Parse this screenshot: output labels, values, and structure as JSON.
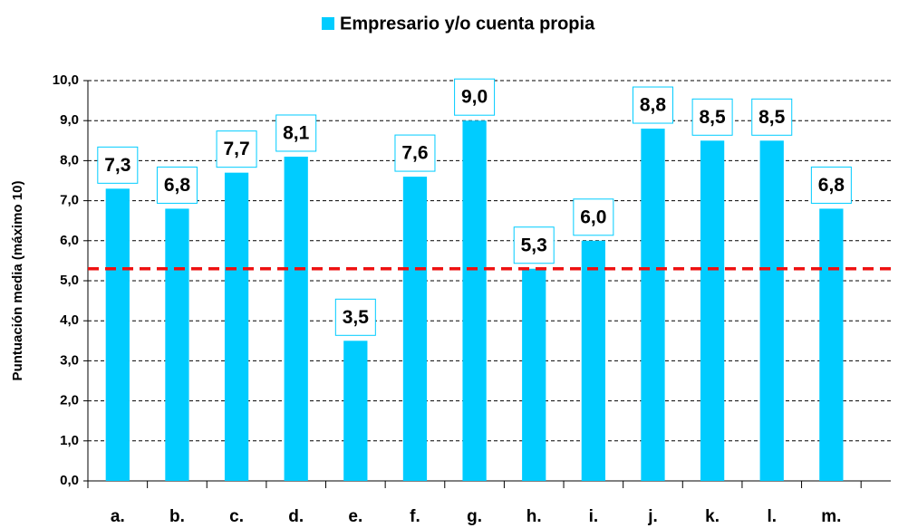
{
  "chart_data": {
    "type": "bar",
    "legend": "Empresario y/o cuenta propia",
    "y_label": "Puntuación media (máximo 10)",
    "categories": [
      "a.",
      "b.",
      "c.",
      "d.",
      "e.",
      "f.",
      "g.",
      "h.",
      "i.",
      "j.",
      "k.",
      "l.",
      "m."
    ],
    "values": [
      7.3,
      6.8,
      7.7,
      8.1,
      3.5,
      7.6,
      9.0,
      5.3,
      6.0,
      8.8,
      8.5,
      8.5,
      6.8
    ],
    "value_labels": [
      "7,3",
      "6,8",
      "7,7",
      "8,1",
      "3,5",
      "7,6",
      "9,0",
      "5,3",
      "6,0",
      "8,8",
      "8,5",
      "8,5",
      "6,8"
    ],
    "color": "#00ccff",
    "reference_line": {
      "value": 5.3,
      "color": "#ee1111"
    },
    "ylim": [
      0,
      10
    ],
    "yticks": [
      {
        "value": 0,
        "label": "0,0"
      },
      {
        "value": 1,
        "label": "1,0"
      },
      {
        "value": 2,
        "label": "2,0"
      },
      {
        "value": 3,
        "label": "3,0"
      },
      {
        "value": 4,
        "label": "4,0"
      },
      {
        "value": 5,
        "label": "5,0"
      },
      {
        "value": 6,
        "label": "6,0"
      },
      {
        "value": 7,
        "label": "7,0"
      },
      {
        "value": 8,
        "label": "8,0"
      },
      {
        "value": 9,
        "label": "9,0"
      },
      {
        "value": 10,
        "label": "10,0"
      }
    ],
    "grid": true
  }
}
